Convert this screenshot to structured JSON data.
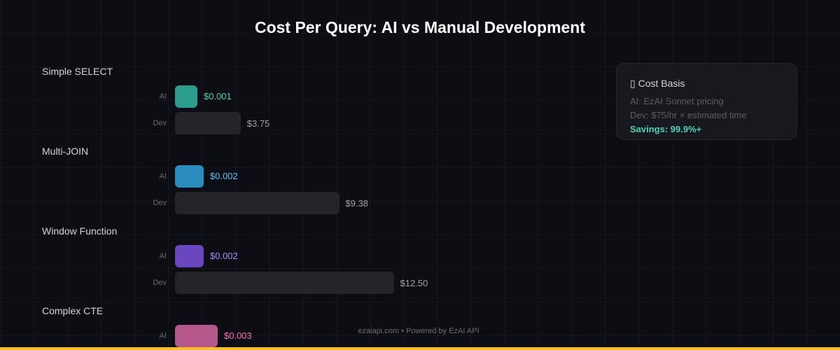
{
  "chart_data": {
    "type": "bar",
    "orientation": "horizontal",
    "title": "Cost Per Query: AI vs Manual Development",
    "categories": [
      "Simple SELECT",
      "Multi-JOIN",
      "Window Function",
      "Complex CTE"
    ],
    "series": [
      {
        "name": "AI",
        "values": [
          0.001,
          0.002,
          0.002,
          0.003
        ],
        "labels": [
          "$0.001",
          "$0.002",
          "$0.002",
          "$0.003"
        ],
        "colors": [
          "#2a9d8f",
          "#2b8cbe",
          "#6b46c1",
          "#b5578a"
        ],
        "label_colors": [
          "#4fd1b5",
          "#4fc3f7",
          "#a78bfa",
          "#f472b6"
        ]
      },
      {
        "name": "Dev",
        "values": [
          3.75,
          9.38,
          12.5,
          null
        ],
        "labels": [
          "$3.75",
          "$9.38",
          "$12.50",
          ""
        ],
        "color": "#24252a",
        "label_color": "#a1a1aa"
      }
    ],
    "grid": true
  },
  "card": {
    "heading": "▯ Cost Basis",
    "line1": "AI: EzAI Sonnet pricing",
    "line2": "Dev: $75/hr × estimated time",
    "savings": "Savings: 99.9%+"
  },
  "footer": "ezaiapi.com • Powered by EzAI API",
  "accent_color": "#fbbf24"
}
